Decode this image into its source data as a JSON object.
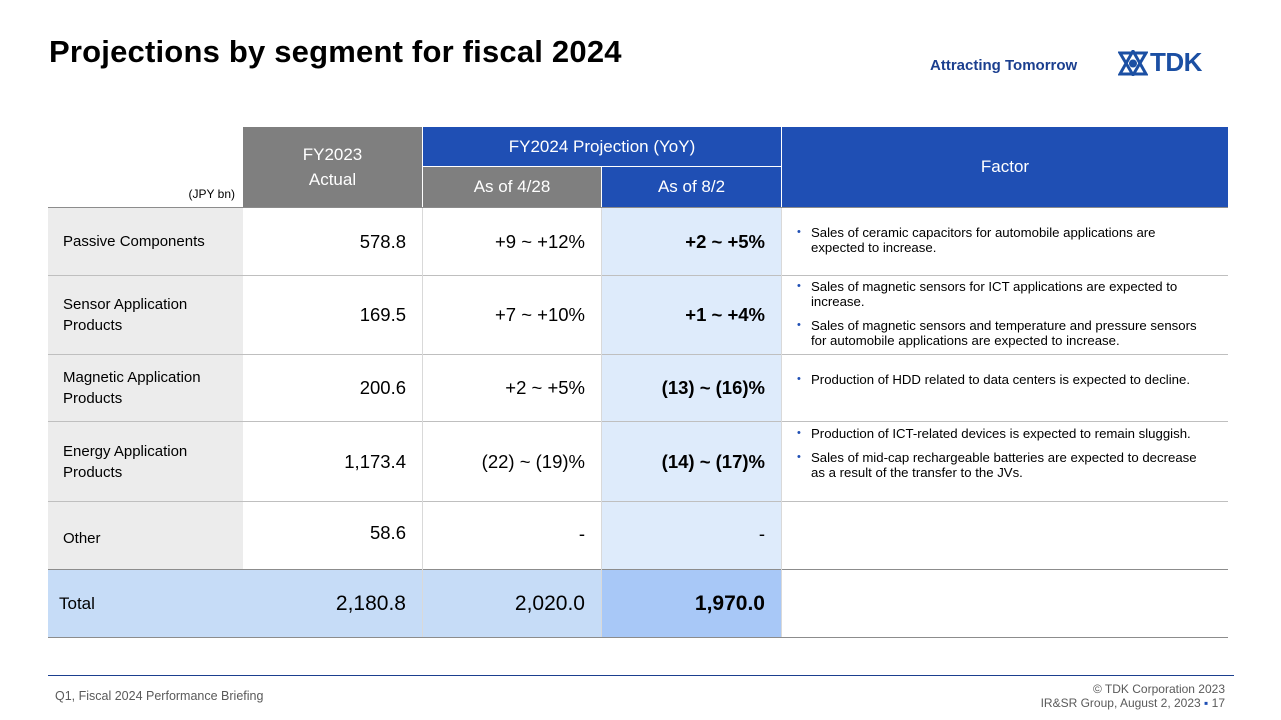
{
  "header": {
    "title": "Projections by segment for fiscal 2024",
    "tagline": "Attracting Tomorrow",
    "logo_text": "TDK"
  },
  "table": {
    "unit_label": "(JPY bn)",
    "columns": {
      "actual_line1": "FY2023",
      "actual_line2": "Actual",
      "projection_group": "FY2024 Projection (YoY)",
      "as_of_a": "As of 4/28",
      "as_of_b": "As of 8/2",
      "factor": "Factor"
    },
    "rows": [
      {
        "segment": "Passive  Components",
        "actual": "578.8",
        "proj_a": "+9 ~ +12%",
        "proj_b": "+2 ~ +5%",
        "factors": [
          "Sales of ceramic capacitors for automobile applications are expected to increase."
        ]
      },
      {
        "segment": "Sensor Application Products",
        "actual": "169.5",
        "proj_a": "+7 ~ +10%",
        "proj_b": "+1 ~ +4%",
        "factors": [
          "Sales of magnetic sensors for ICT applications are expected to increase.",
          "Sales of magnetic sensors and temperature and pressure sensors for automobile applications are expected to increase."
        ]
      },
      {
        "segment": "Magnetic  Application Products",
        "actual": "200.6",
        "proj_a": "+2 ~ +5%",
        "proj_b": "(13) ~ (16)%",
        "factors": [
          "Production of HDD related to data centers is expected to decline."
        ]
      },
      {
        "segment": "Energy Application Products",
        "actual": "1,173.4",
        "proj_a": "(22) ~ (19)%",
        "proj_b": "(14) ~ (17)%",
        "factors": [
          "Production of ICT-related devices is expected to remain sluggish.",
          "Sales of mid-cap rechargeable batteries are expected to decrease as a result of the transfer to the JVs."
        ]
      },
      {
        "segment": "Other",
        "actual": "58.6",
        "proj_a": "-",
        "proj_b": "-",
        "factors": []
      }
    ],
    "total": {
      "label": "Total",
      "actual": "2,180.8",
      "proj_a": "2,020.0",
      "proj_b": "1,970.0"
    }
  },
  "footer": {
    "left": "Q1, Fiscal 2024 Performance  Briefing",
    "copyright": "© TDK Corporation 2023",
    "group_date": "IR&SR Group, August 2, 2023",
    "page_number": "17"
  }
}
